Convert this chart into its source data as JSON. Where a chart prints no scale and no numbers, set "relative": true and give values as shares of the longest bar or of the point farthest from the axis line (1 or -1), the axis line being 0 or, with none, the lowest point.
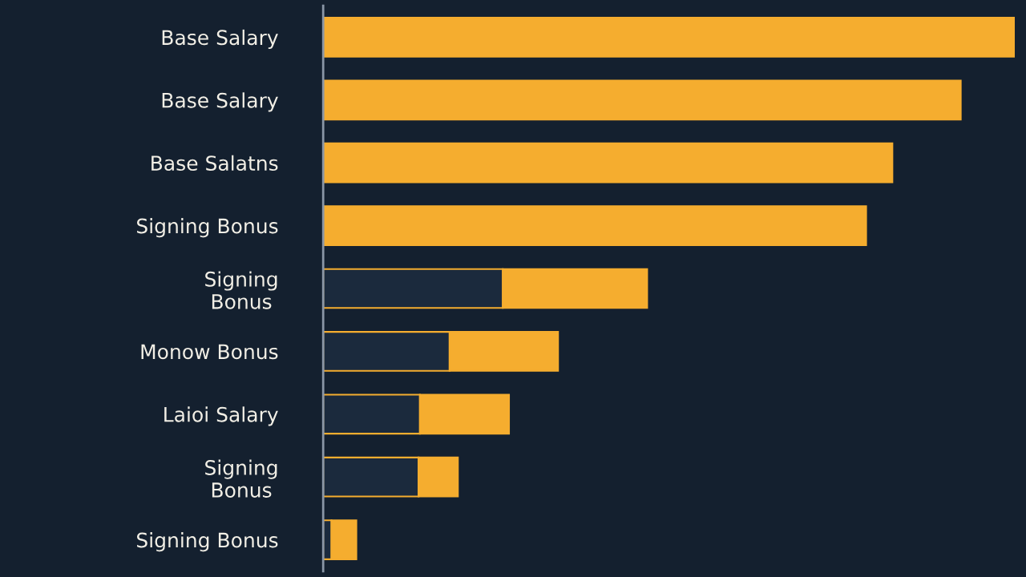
{
  "chart_data": {
    "type": "bar",
    "orientation": "horizontal",
    "stacked": true,
    "relative": true,
    "grid": false,
    "legend": false,
    "categories": [
      "Base Salary",
      "Base Salary",
      "Base Salatns",
      "Signing Bonus",
      "Signing\nBonus",
      "Monow Bonus",
      "Laioi Salary",
      "Signing\nBonus",
      "Signing Bonus"
    ],
    "series": [
      {
        "color": "#1b2a3d",
        "values": [
          null,
          null,
          null,
          null,
          0.26,
          0.183,
          0.14,
          0.138,
          0.012
        ]
      },
      {
        "color": "#f5ad2f",
        "values": [
          1.0,
          0.923,
          0.824,
          0.786,
          0.209,
          0.157,
          0.129,
          0.057,
          0.036
        ]
      }
    ]
  }
}
